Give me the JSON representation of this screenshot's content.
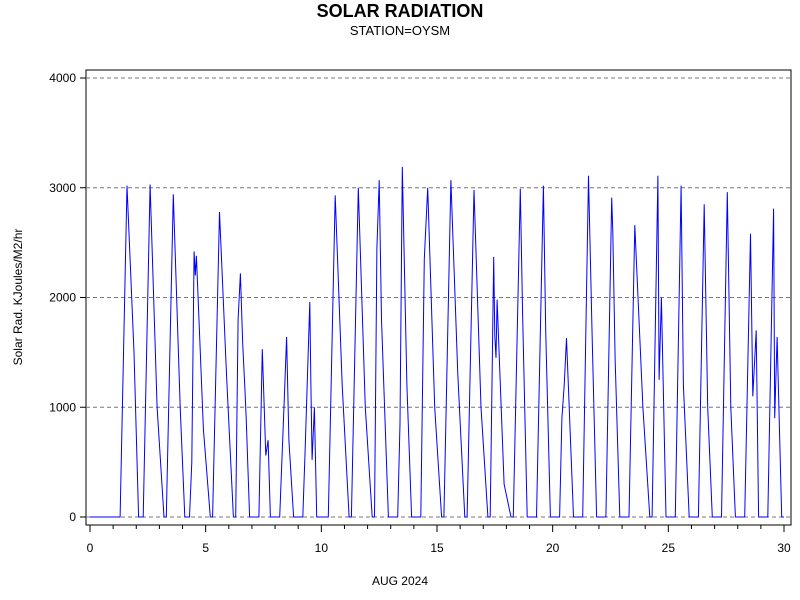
{
  "chart_data": {
    "type": "line",
    "title": "SOLAR RADIATION",
    "subtitle": "STATION=OYSM",
    "xlabel": "AUG 2024",
    "ylabel": "Solar Rad. KJoules/M2/hr",
    "xlim": [
      0,
      30
    ],
    "ylim": [
      0,
      4000
    ],
    "x_ticks": [
      0,
      5,
      10,
      15,
      20,
      25,
      30
    ],
    "y_ticks": [
      0,
      1000,
      2000,
      3000,
      4000
    ],
    "grid": "horizontal-dashed",
    "color": "#0000ff",
    "series": [
      {
        "x": [
          0.0,
          0.5,
          1.0,
          1.3,
          1.6,
          1.9,
          2.1,
          2.3,
          2.6,
          2.9,
          3.2,
          3.3,
          3.6,
          3.9,
          4.1,
          4.3,
          4.4,
          4.5,
          4.55,
          4.6,
          4.9,
          5.2,
          5.3,
          5.6,
          5.9,
          6.2,
          6.3,
          6.4,
          6.5,
          6.6,
          6.7,
          6.75,
          6.9,
          7.3,
          7.45,
          7.6,
          7.7,
          7.8,
          8.2,
          8.4,
          8.5,
          8.6,
          8.8,
          9.2,
          9.3,
          9.5,
          9.55,
          9.6,
          9.7,
          9.8,
          10.2,
          10.3,
          10.6,
          10.9,
          11.2,
          11.3,
          11.6,
          11.9,
          12.2,
          12.3,
          12.4,
          12.5,
          12.6,
          12.9,
          13.2,
          13.3,
          13.4,
          13.5,
          13.7,
          13.9,
          14.2,
          14.3,
          14.45,
          14.6,
          14.9,
          15.2,
          15.3,
          15.6,
          15.9,
          16.2,
          16.3,
          16.6,
          16.9,
          17.2,
          17.3,
          17.45,
          17.5,
          17.55,
          17.6,
          17.9,
          18.2,
          18.3,
          18.6,
          18.7,
          18.9,
          19.2,
          19.3,
          19.6,
          19.7,
          19.9,
          20.2,
          20.3,
          20.4,
          20.5,
          20.6,
          20.9,
          21.2,
          21.3,
          21.55,
          21.7,
          21.9,
          22.2,
          22.3,
          22.55,
          22.6,
          22.7,
          22.9,
          23.2,
          23.3,
          23.55,
          23.9,
          24.2,
          24.3,
          24.55,
          24.6,
          24.7,
          24.9,
          25.2,
          25.3,
          25.55,
          25.65,
          25.9,
          26.2,
          26.3,
          26.55,
          26.7,
          26.9,
          27.2,
          27.3,
          27.55,
          27.7,
          27.9,
          28.2,
          28.3,
          28.55,
          28.65,
          28.8,
          28.9,
          29.2,
          29.3,
          29.55,
          29.6,
          29.7,
          29.9,
          30.0
        ],
        "y": [
          0,
          0,
          0,
          0,
          3020,
          1500,
          0,
          0,
          3030,
          1000,
          0,
          0,
          2940,
          1000,
          0,
          0,
          500,
          2420,
          2200,
          2380,
          800,
          0,
          0,
          2780,
          1300,
          0,
          0,
          1800,
          2220,
          1580,
          1150,
          900,
          0,
          0,
          1530,
          560,
          700,
          0,
          0,
          1080,
          1640,
          700,
          0,
          0,
          600,
          1960,
          1200,
          520,
          1000,
          0,
          0,
          0,
          2930,
          1200,
          0,
          0,
          3000,
          1000,
          0,
          0,
          2450,
          3070,
          1800,
          0,
          0,
          0,
          850,
          3190,
          1200,
          0,
          0,
          0,
          2350,
          3000,
          1000,
          0,
          0,
          3070,
          1300,
          0,
          0,
          2980,
          1000,
          0,
          0,
          2370,
          1650,
          1450,
          1980,
          300,
          0,
          0,
          2990,
          1850,
          0,
          0,
          0,
          3020,
          1700,
          0,
          0,
          0,
          900,
          1200,
          1630,
          0,
          0,
          0,
          3110,
          1700,
          0,
          0,
          0,
          2910,
          2600,
          1450,
          0,
          0,
          0,
          2660,
          1000,
          0,
          0,
          3110,
          1250,
          2000,
          0,
          0,
          0,
          3020,
          1200,
          0,
          0,
          0,
          2850,
          1000,
          0,
          0,
          0,
          2960,
          1000,
          0,
          0,
          0,
          2580,
          1100,
          1700,
          0,
          0,
          0,
          2810,
          900,
          1640,
          0,
          0
        ]
      }
    ]
  }
}
